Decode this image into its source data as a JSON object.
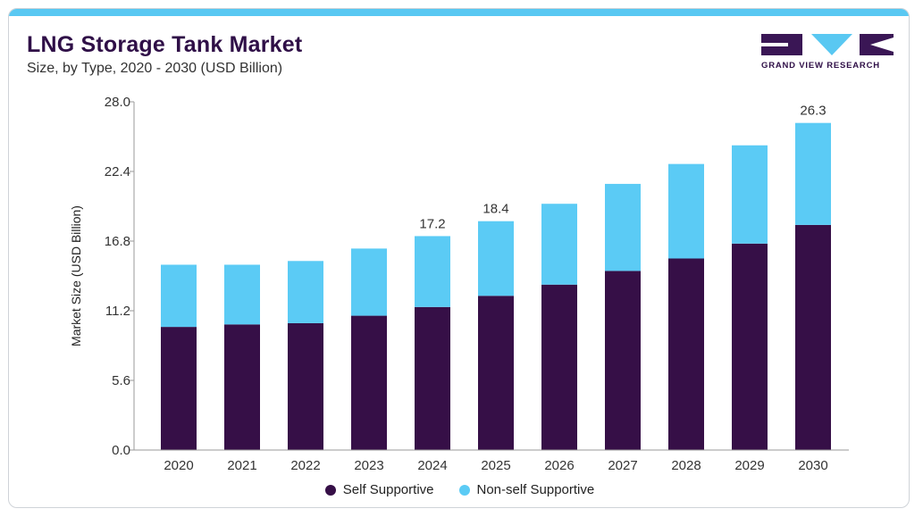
{
  "header": {
    "title": "LNG Storage Tank Market",
    "subtitle": "Size, by Type, 2020 - 2030 (USD Billion)"
  },
  "logo": {
    "text": "GRAND VIEW RESEARCH",
    "colors": {
      "dark": "#3a1655",
      "light": "#59c8f2"
    }
  },
  "colors": {
    "accent_bar": "#59c8f2",
    "self_supportive": "#360f47",
    "non_self_supportive": "#5bcbf5",
    "title": "#2f0f47"
  },
  "chart_data": {
    "type": "bar",
    "stacked": true,
    "categories": [
      "2020",
      "2021",
      "2022",
      "2023",
      "2024",
      "2025",
      "2026",
      "2027",
      "2028",
      "2029",
      "2030"
    ],
    "series": [
      {
        "name": "Self Supportive",
        "color": "#360f47",
        "values": [
          9.9,
          10.1,
          10.2,
          10.8,
          11.5,
          12.4,
          13.3,
          14.4,
          15.4,
          16.6,
          18.1
        ]
      },
      {
        "name": "Non-self Supportive",
        "color": "#5bcbf5",
        "values": [
          5.0,
          4.8,
          5.0,
          5.4,
          5.7,
          6.0,
          6.5,
          7.0,
          7.6,
          7.9,
          8.2
        ]
      }
    ],
    "total_labels": [
      {
        "category": "2024",
        "text": "17.2"
      },
      {
        "category": "2025",
        "text": "18.4"
      },
      {
        "category": "2030",
        "text": "26.3"
      }
    ],
    "ylabel": "Market Size (USD Billion)",
    "xlabel": "",
    "ylim": [
      0,
      28
    ],
    "yticks": [
      "0.0",
      "5.6",
      "11.2",
      "16.8",
      "22.4",
      "28.0"
    ],
    "grid": false,
    "legend_position": "bottom"
  }
}
